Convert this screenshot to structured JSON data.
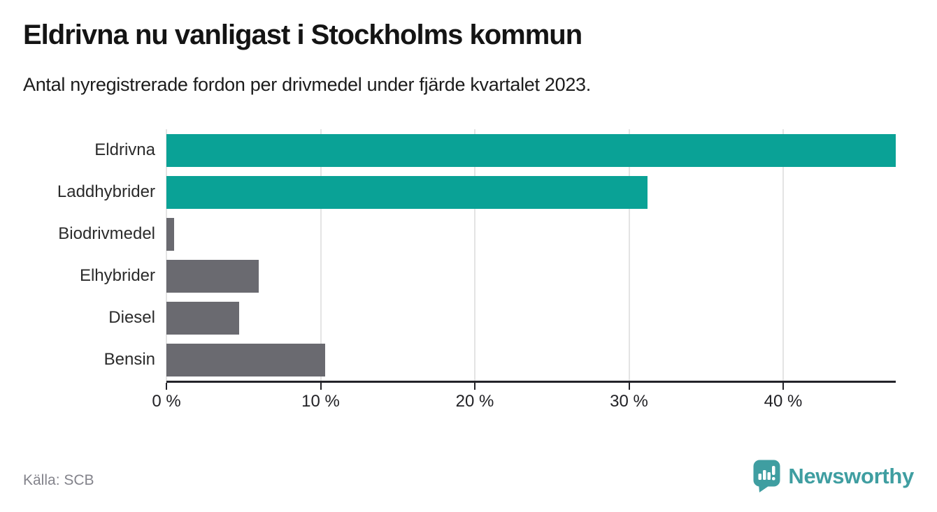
{
  "header": {
    "title": "Eldrivna nu vanligast i Stockholms kommun",
    "subtitle": "Antal nyregistrerade fordon per drivmedel under fjärde kvartalet 2023."
  },
  "chart_data": {
    "type": "bar",
    "orientation": "horizontal",
    "title": "Eldrivna nu vanligast i Stockholms kommun",
    "subtitle": "Antal nyregistrerade fordon per drivmedel under fjärde kvartalet 2023.",
    "categories": [
      "Eldrivna",
      "Laddhybrider",
      "Biodrivmedel",
      "Elhybrider",
      "Diesel",
      "Bensin"
    ],
    "values": [
      47.3,
      31.2,
      0.5,
      6.0,
      4.7,
      10.3
    ],
    "unit": "%",
    "colors": [
      "#0aa296",
      "#0aa296",
      "#6a6a70",
      "#6a6a70",
      "#6a6a70",
      "#6a6a70"
    ],
    "highlight_color": "#0aa296",
    "default_color": "#6a6a70",
    "x_tick_values": [
      0,
      10,
      20,
      30,
      40
    ],
    "x_tick_labels": [
      "0 %",
      "10 %",
      "20 %",
      "30 %",
      "40 %"
    ],
    "xlim": [
      0,
      47.3
    ],
    "grid": true,
    "legend": "none",
    "source": "Källa: SCB"
  },
  "footer": {
    "source": "Källa: SCB",
    "brand": "Newsworthy",
    "brand_color": "#3f9ea1"
  }
}
